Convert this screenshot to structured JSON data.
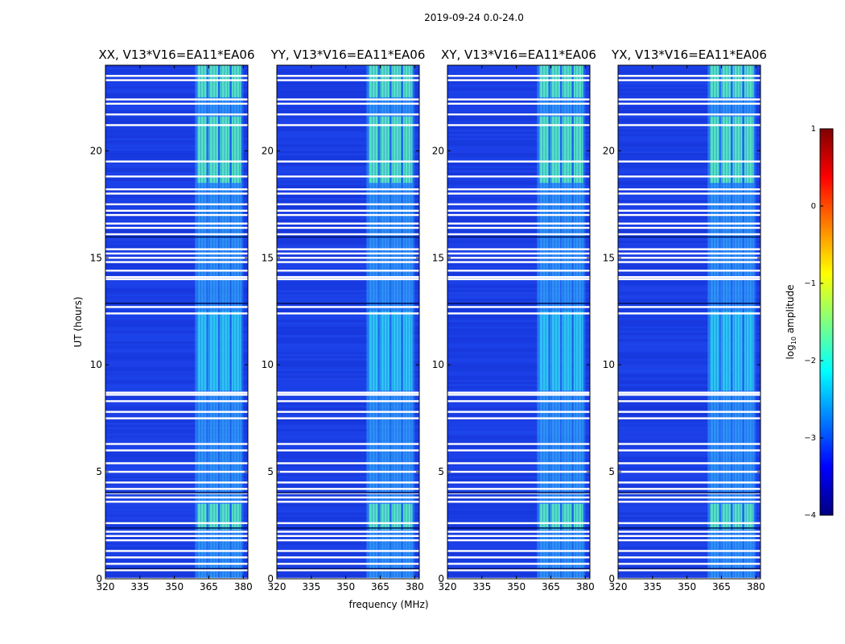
{
  "figure": {
    "suptitle": "2019-09-24 0.0-24.0",
    "xlabel": "frequency (MHz)",
    "ylabel": "UT (hours)",
    "colorbar": {
      "label": "log",
      "label_sub": "10",
      "label_rest": " amplitude",
      "ticks": [
        "1",
        "0",
        "−1",
        "−2",
        "−3",
        "−4"
      ],
      "range": [
        -4,
        1
      ],
      "colormap": [
        "#00007f",
        "#0000ff",
        "#0080ff",
        "#00ffff",
        "#80ff80",
        "#ffff00",
        "#ff8000",
        "#ff0000",
        "#7f0000"
      ]
    }
  },
  "chart_data": [
    {
      "type": "heatmap",
      "title": "XX, V13*V16=EA11*EA06",
      "x_ticks": [
        "320",
        "335",
        "350",
        "365",
        "380"
      ],
      "y_ticks": [
        "0",
        "5",
        "10",
        "15",
        "20"
      ],
      "xlim": [
        320,
        382
      ],
      "ylim": [
        0,
        24
      ]
    },
    {
      "type": "heatmap",
      "title": "YY, V13*V16=EA11*EA06",
      "x_ticks": [
        "320",
        "335",
        "350",
        "365",
        "380"
      ],
      "y_ticks": [
        "0",
        "5",
        "10",
        "15",
        "20"
      ],
      "xlim": [
        320,
        382
      ],
      "ylim": [
        0,
        24
      ]
    },
    {
      "type": "heatmap",
      "title": "XY, V13*V16=EA11*EA06",
      "x_ticks": [
        "320",
        "335",
        "350",
        "365",
        "380"
      ],
      "y_ticks": [
        "0",
        "5",
        "10",
        "15",
        "20"
      ],
      "xlim": [
        320,
        382
      ],
      "ylim": [
        0,
        24
      ]
    },
    {
      "type": "heatmap",
      "title": "YX, V13*V16=EA11*EA06",
      "x_ticks": [
        "320",
        "335",
        "350",
        "365",
        "380"
      ],
      "y_ticks": [
        "0",
        "5",
        "10",
        "15",
        "20"
      ],
      "xlim": [
        320,
        382
      ],
      "ylim": [
        0,
        24
      ]
    }
  ],
  "features": {
    "rfi_band_mhz": [
      359,
      380
    ],
    "rfi_columns_mhz": [
      [
        360,
        364
      ],
      [
        365,
        369
      ],
      [
        370,
        374
      ],
      [
        375,
        379
      ]
    ],
    "bright_periods_ut": [
      [
        18.5,
        21.6
      ],
      [
        22.5,
        24.0
      ],
      [
        2.3,
        3.5
      ]
    ],
    "medium_periods_ut": [
      [
        8.8,
        12.5
      ]
    ],
    "flagged_ut": [
      0.0,
      0.4,
      0.7,
      1.0,
      1.3,
      1.8,
      2.0,
      2.2,
      2.6,
      3.6,
      3.8,
      4.0,
      4.2,
      4.5,
      5.0,
      5.4,
      6.0,
      6.3,
      7.5,
      7.8,
      8.3,
      8.6,
      8.7,
      12.4,
      12.7,
      14.0,
      14.1,
      14.4,
      14.8,
      15.0,
      15.2,
      15.4,
      16.1,
      16.4,
      16.6,
      17.0,
      17.2,
      17.5,
      18.0,
      18.2,
      18.8,
      19.5,
      21.2,
      21.7,
      22.2,
      22.4,
      23.3,
      23.5
    ]
  }
}
